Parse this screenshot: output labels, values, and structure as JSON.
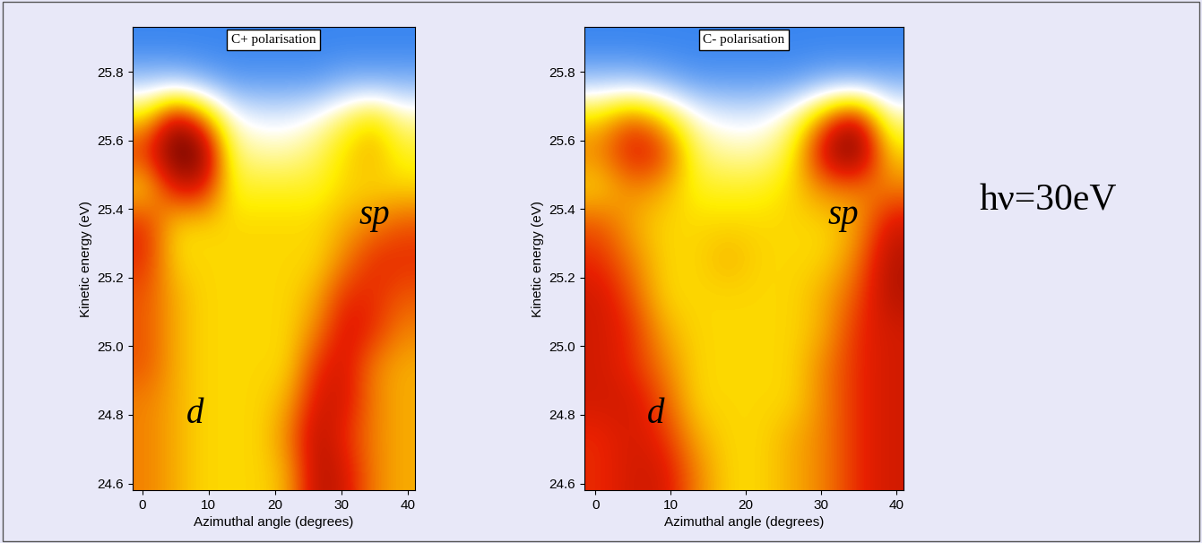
{
  "chart_data": [
    {
      "type": "heatmap",
      "title": "C+ polarisation",
      "x_label": "Azimuthal angle (degrees)",
      "y_label": "Kinetic energy (eV)",
      "xlim": [
        -1.5,
        41
      ],
      "ylim": [
        24.58,
        25.93
      ],
      "xticks": [
        0,
        10,
        20,
        30,
        40
      ],
      "yticks": [
        24.6,
        24.8,
        25.0,
        25.2,
        25.4,
        25.6,
        25.8
      ],
      "intensity": [
        [
          0.6,
          0.55,
          0.5,
          0.5,
          0.5,
          0.55,
          0.8,
          0.75,
          0.6,
          0.55
        ],
        [
          0.6,
          0.55,
          0.5,
          0.5,
          0.5,
          0.6,
          0.8,
          0.7,
          0.6,
          0.55
        ],
        [
          0.6,
          0.55,
          0.5,
          0.5,
          0.5,
          0.55,
          0.75,
          0.75,
          0.6,
          0.55
        ],
        [
          0.65,
          0.55,
          0.5,
          0.5,
          0.5,
          0.5,
          0.7,
          0.75,
          0.6,
          0.55
        ],
        [
          0.65,
          0.55,
          0.5,
          0.5,
          0.5,
          0.5,
          0.6,
          0.75,
          0.7,
          0.6
        ],
        [
          0.65,
          0.55,
          0.5,
          0.5,
          0.5,
          0.5,
          0.55,
          0.7,
          0.7,
          0.65
        ],
        [
          0.7,
          0.5,
          0.5,
          0.5,
          0.5,
          0.5,
          0.5,
          0.6,
          0.7,
          0.7
        ],
        [
          0.7,
          0.5,
          0.5,
          0.5,
          0.5,
          0.5,
          0.5,
          0.55,
          0.6,
          0.65
        ],
        [
          0.5,
          0.75,
          0.75,
          0.45,
          0.45,
          0.45,
          0.45,
          0.5,
          0.5,
          0.5
        ],
        [
          0.7,
          0.95,
          0.9,
          0.4,
          0.35,
          0.35,
          0.4,
          0.5,
          0.55,
          0.45
        ],
        [
          0.5,
          0.8,
          0.6,
          0.3,
          0.25,
          0.25,
          0.3,
          0.4,
          0.5,
          0.35
        ],
        [
          0.15,
          0.15,
          0.1,
          0.05,
          0.05,
          0.05,
          0.05,
          0.1,
          0.1,
          0.1
        ],
        [
          0,
          0,
          0,
          0,
          0,
          0,
          0,
          0,
          0,
          0
        ]
      ],
      "annotations": [
        {
          "text": "d",
          "x": 8,
          "y": 24.8
        },
        {
          "text": "sp",
          "x": 35,
          "y": 25.38
        }
      ]
    },
    {
      "type": "heatmap",
      "title": "C- polarisation",
      "x_label": "Azimuthal angle (degrees)",
      "y_label": "Kinetic energy (eV)",
      "xlim": [
        -1.5,
        41
      ],
      "ylim": [
        24.58,
        25.93
      ],
      "xticks": [
        0,
        10,
        20,
        30,
        40
      ],
      "yticks": [
        24.6,
        24.8,
        25.0,
        25.2,
        25.4,
        25.6,
        25.8
      ],
      "intensity": [
        [
          0.7,
          0.75,
          0.75,
          0.6,
          0.5,
          0.5,
          0.55,
          0.6,
          0.7,
          0.75
        ],
        [
          0.7,
          0.75,
          0.7,
          0.55,
          0.5,
          0.5,
          0.55,
          0.6,
          0.7,
          0.75
        ],
        [
          0.75,
          0.75,
          0.65,
          0.5,
          0.5,
          0.5,
          0.5,
          0.6,
          0.7,
          0.75
        ],
        [
          0.75,
          0.7,
          0.6,
          0.5,
          0.5,
          0.5,
          0.5,
          0.6,
          0.7,
          0.75
        ],
        [
          0.75,
          0.7,
          0.55,
          0.5,
          0.5,
          0.5,
          0.5,
          0.55,
          0.7,
          0.75
        ],
        [
          0.75,
          0.65,
          0.5,
          0.5,
          0.5,
          0.5,
          0.5,
          0.55,
          0.65,
          0.8
        ],
        [
          0.7,
          0.6,
          0.5,
          0.5,
          0.55,
          0.5,
          0.5,
          0.5,
          0.6,
          0.8
        ],
        [
          0.65,
          0.55,
          0.5,
          0.5,
          0.5,
          0.5,
          0.5,
          0.5,
          0.55,
          0.75
        ],
        [
          0.5,
          0.6,
          0.55,
          0.45,
          0.45,
          0.45,
          0.5,
          0.6,
          0.6,
          0.6
        ],
        [
          0.6,
          0.75,
          0.7,
          0.4,
          0.35,
          0.35,
          0.45,
          0.8,
          0.95,
          0.5
        ],
        [
          0.5,
          0.65,
          0.5,
          0.3,
          0.25,
          0.25,
          0.35,
          0.6,
          0.8,
          0.35
        ],
        [
          0.15,
          0.15,
          0.1,
          0.05,
          0.05,
          0.05,
          0.05,
          0.1,
          0.1,
          0.1
        ],
        [
          0,
          0,
          0,
          0,
          0,
          0,
          0,
          0,
          0,
          0
        ]
      ],
      "annotations": [
        {
          "text": "d",
          "x": 8,
          "y": 24.8
        },
        {
          "text": "sp",
          "x": 33,
          "y": 25.38
        }
      ]
    }
  ],
  "figure_text": "hν=30eV"
}
